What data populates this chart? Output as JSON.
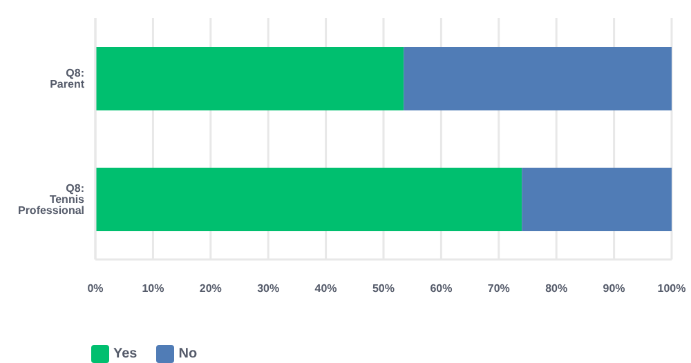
{
  "chart_data": {
    "type": "bar",
    "orientation": "horizontal",
    "stacked": true,
    "categories": [
      "Q8: Parent",
      "Q8: Tennis Professional"
    ],
    "series": [
      {
        "name": "Yes",
        "color": "#00bf6f",
        "values": [
          53.5,
          74
        ]
      },
      {
        "name": "No",
        "color": "#507cb6",
        "values": [
          46.5,
          26
        ]
      }
    ],
    "xlim": [
      0,
      100
    ],
    "xticks": [
      {
        "value": 0,
        "label": "0%"
      },
      {
        "value": 10,
        "label": "10%"
      },
      {
        "value": 20,
        "label": "20%"
      },
      {
        "value": 30,
        "label": "30%"
      },
      {
        "value": 40,
        "label": "40%"
      },
      {
        "value": 50,
        "label": "50%"
      },
      {
        "value": 60,
        "label": "60%"
      },
      {
        "value": 70,
        "label": "70%"
      },
      {
        "value": 80,
        "label": "80%"
      },
      {
        "value": 90,
        "label": "90%"
      },
      {
        "value": 100,
        "label": "100%"
      }
    ],
    "grid": "x",
    "legend": "bottom left"
  }
}
